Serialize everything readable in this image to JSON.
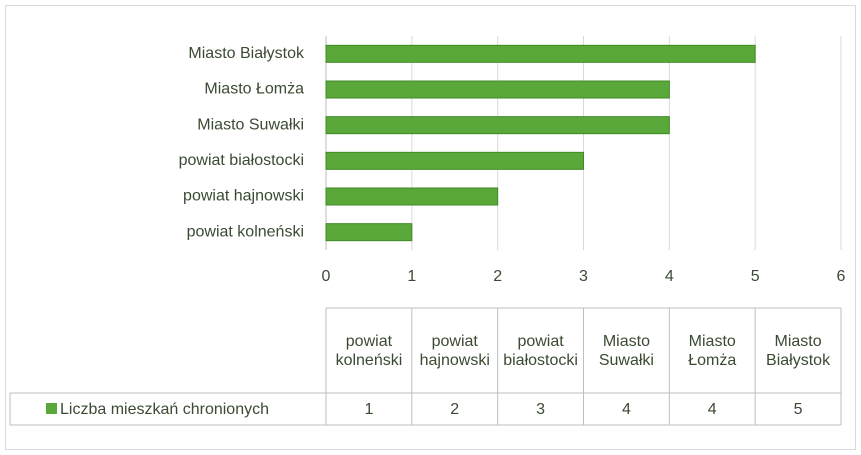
{
  "chart_data": {
    "type": "bar",
    "orientation": "horizontal",
    "categories": [
      "powiat kolneński",
      "powiat hajnowski",
      "powiat białostocki",
      "Miasto Suwałki",
      "Miasto Łomża",
      "Miasto Białystok"
    ],
    "series": [
      {
        "name": "Liczba mieszkań chronionych",
        "color": "#5aa83a",
        "values": [
          1,
          2,
          3,
          4,
          4,
          5
        ]
      }
    ],
    "xlim": [
      0,
      6
    ],
    "xticks": [
      0,
      1,
      2,
      3,
      4,
      5,
      6
    ],
    "grid": true,
    "data_table": true
  }
}
